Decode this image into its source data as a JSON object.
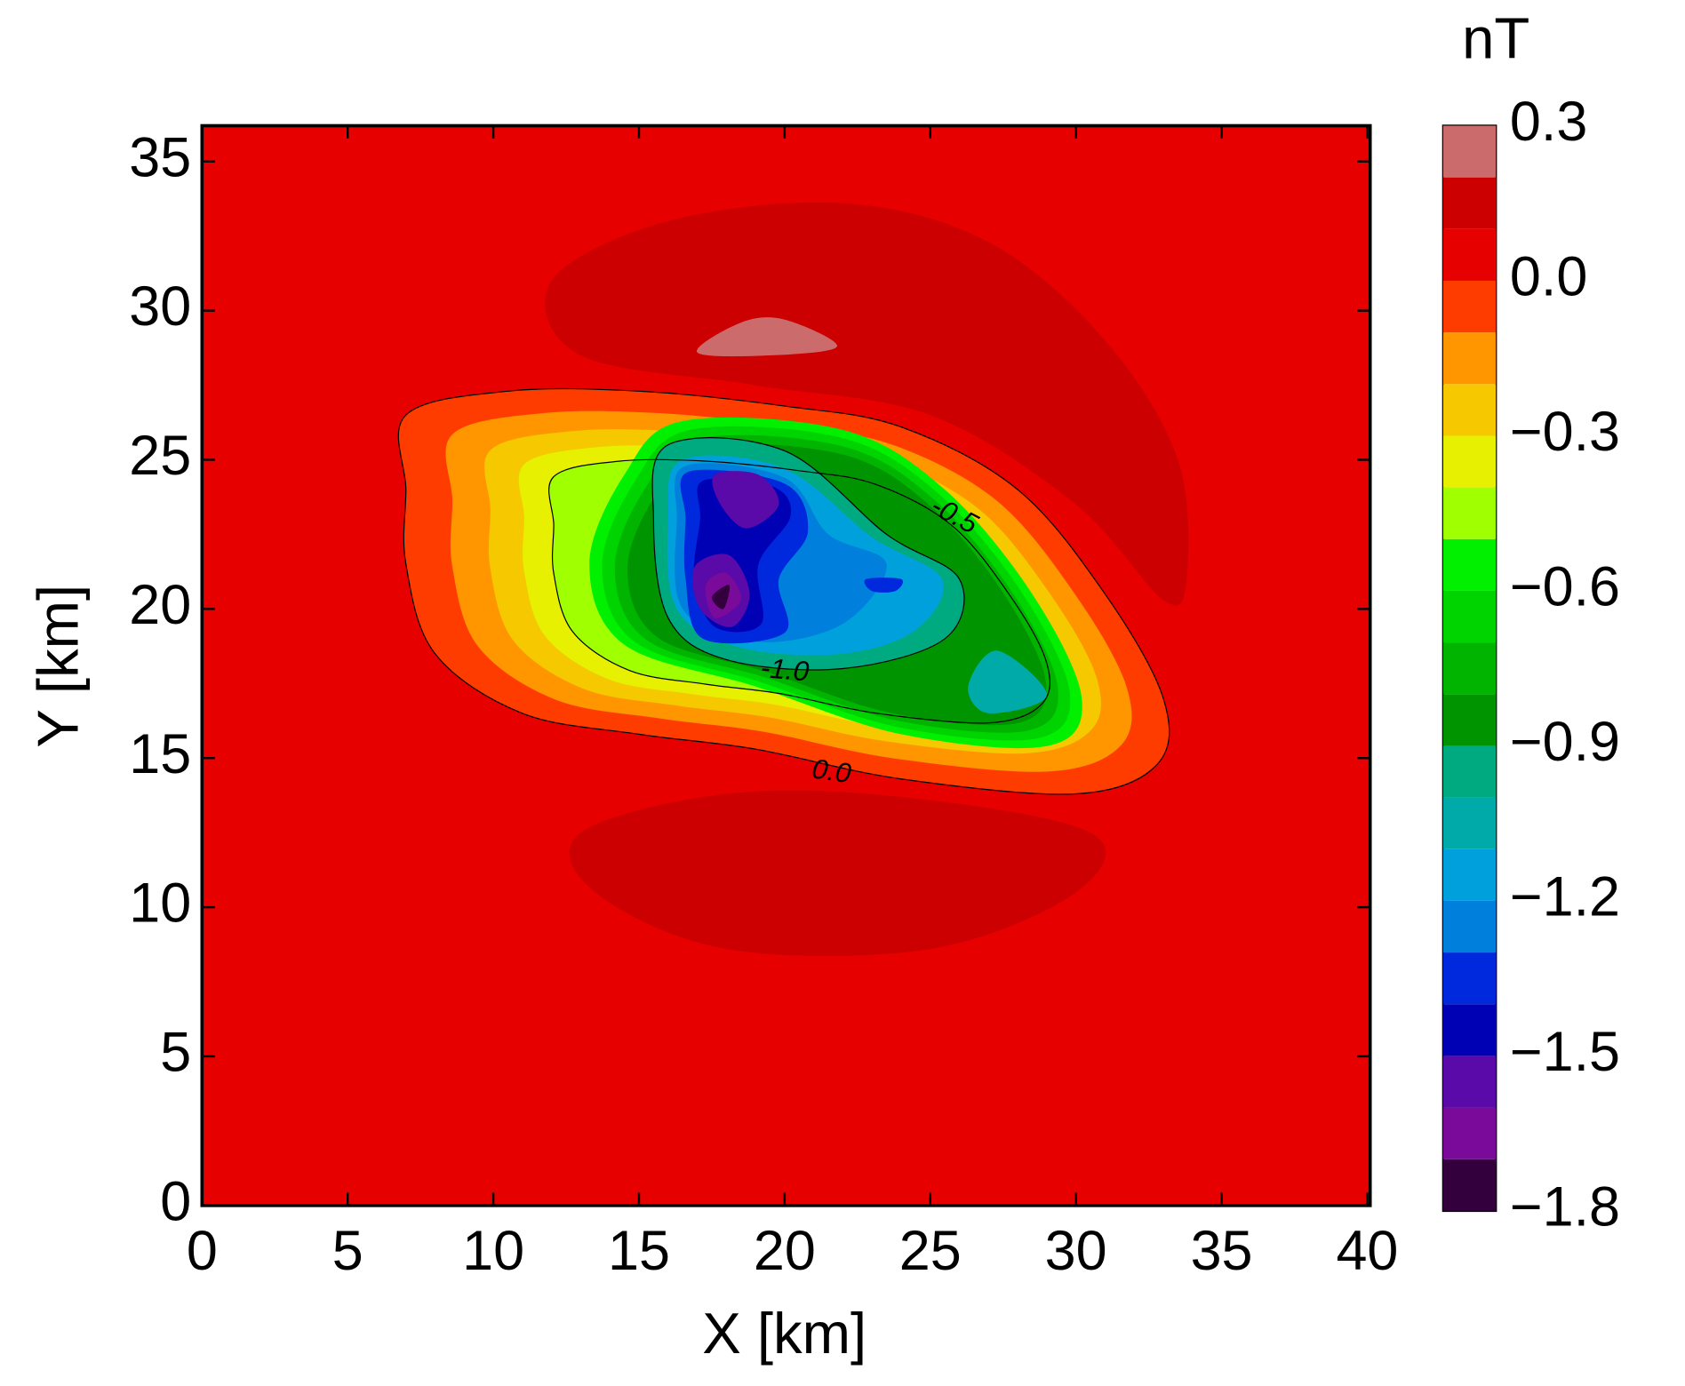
{
  "chart_data": {
    "type": "contour",
    "x_label": "X [km]",
    "y_label": "Y [km]",
    "colorbar_label": "nT",
    "xlim": [
      0,
      40.1
    ],
    "ylim": [
      0,
      36.2
    ],
    "xticks": [
      0,
      5,
      10,
      15,
      20,
      25,
      30,
      35,
      40
    ],
    "yticks": [
      0,
      5,
      10,
      15,
      20,
      25,
      30,
      35
    ],
    "levels": [
      -1.8,
      -1.7,
      -1.6,
      -1.5,
      -1.4,
      -1.3,
      -1.2,
      -1.1,
      -1.0,
      -0.9,
      -0.8,
      -0.7,
      -0.6,
      -0.5,
      -0.4,
      -0.3,
      -0.2,
      -0.1,
      0.0,
      0.1,
      0.2,
      0.3
    ],
    "colors": [
      "#33003d",
      "#7a0a9a",
      "#5a0aa8",
      "#0000b4",
      "#0028dc",
      "#0080dc",
      "#00a0dc",
      "#00aaa8",
      "#00aa80",
      "#009400",
      "#00b400",
      "#00d400",
      "#00f000",
      "#a0ff00",
      "#e6f000",
      "#f5c800",
      "#ff9600",
      "#ff3c00",
      "#e60000",
      "#cc0000",
      "#cc6b6b"
    ],
    "colorbar_ticks": [
      {
        "value": 0.3,
        "label": "0.3"
      },
      {
        "value": 0.0,
        "label": "0.0"
      },
      {
        "value": -0.3,
        "label": "−0.3"
      },
      {
        "value": -0.6,
        "label": "−0.6"
      },
      {
        "value": -0.9,
        "label": "−0.9"
      },
      {
        "value": -1.2,
        "label": "−1.2"
      },
      {
        "value": -1.5,
        "label": "−1.5"
      },
      {
        "value": -1.8,
        "label": "−1.8"
      }
    ],
    "contour_labels": [
      {
        "value": -0.5,
        "label": "-0.5"
      },
      {
        "value": -1.0,
        "label": "-1.0"
      },
      {
        "value": 0.0,
        "label": "0.0"
      }
    ]
  }
}
